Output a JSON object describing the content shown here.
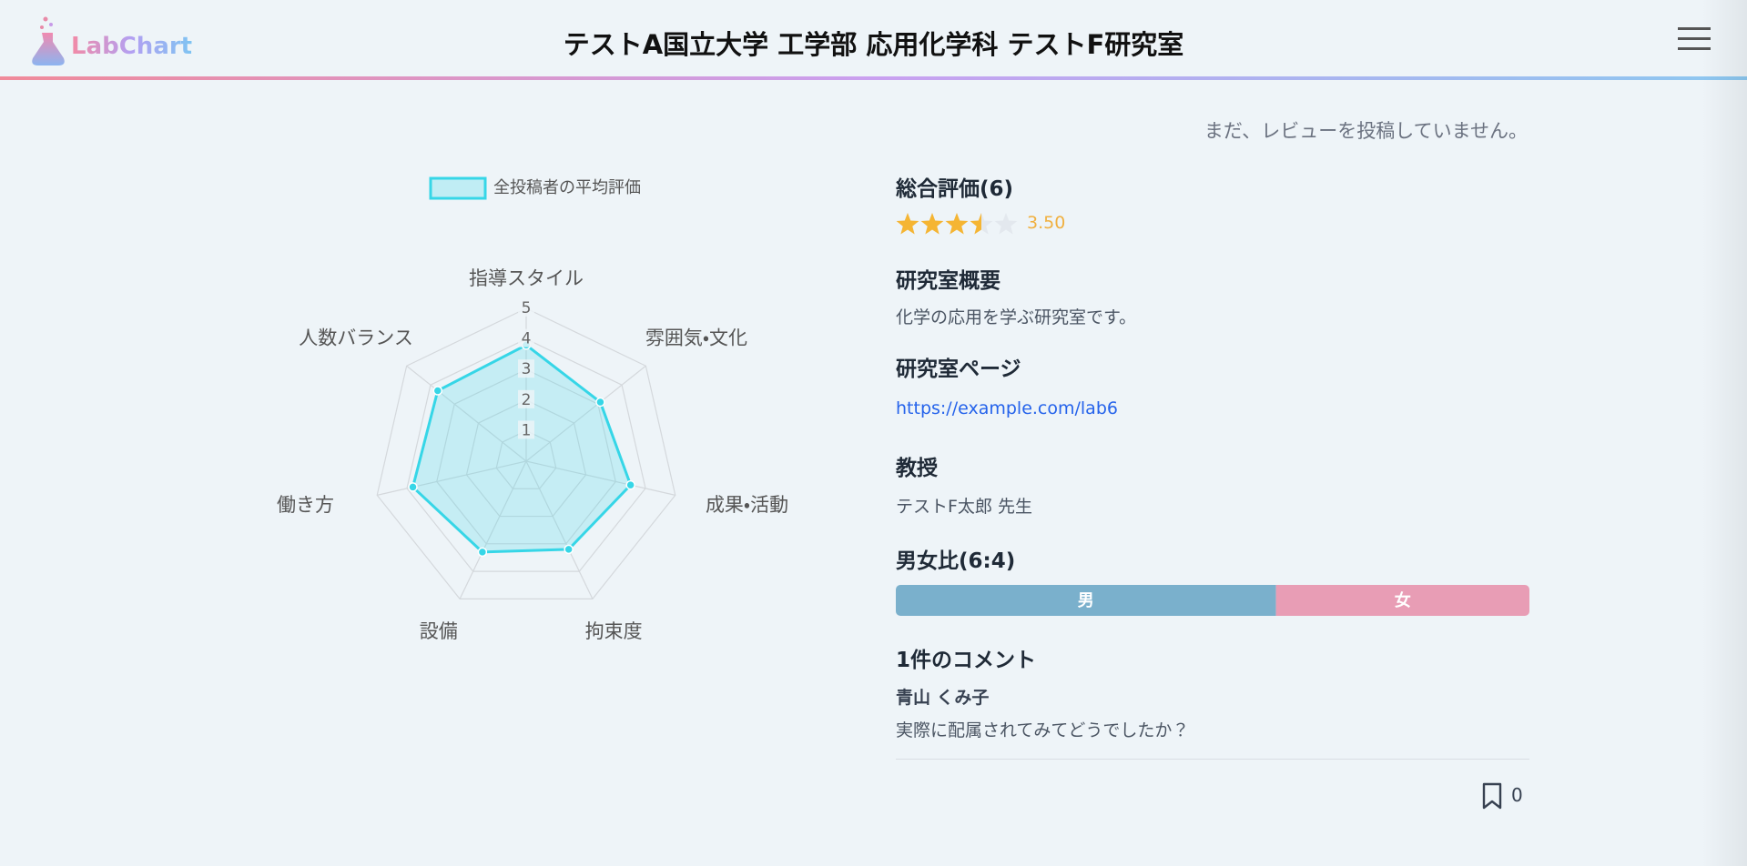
{
  "header": {
    "logo": "LabChart",
    "title": "テストA国立大学 工学部 応用化学科 テストF研究室"
  },
  "notice": "まだ、レビューを投稿していません。",
  "chart_data": {
    "type": "radar",
    "categories": [
      "指導スタイル",
      "雰囲気・文化",
      "成果・活動",
      "拘束度",
      "設備",
      "働き方",
      "人数バランス"
    ],
    "series": [
      {
        "name": "全投稿者の平均評価",
        "color": "#36d6e7",
        "values": [
          3.8,
          3.1,
          3.5,
          3.2,
          3.3,
          3.8,
          3.7
        ]
      }
    ],
    "ylim": [
      0,
      5
    ],
    "yticks": [
      1,
      2,
      3,
      4,
      5
    ],
    "grid": true,
    "legend": "top"
  },
  "details": {
    "rating": {
      "title": "総合評価(6)",
      "value": 3.5,
      "label": "3.50",
      "max": 5
    },
    "overview": {
      "title": "研究室概要",
      "text": "化学の応用を学ぶ研究室です。"
    },
    "page": {
      "title": "研究室ページ",
      "url": "https://example.com/lab6"
    },
    "professor": {
      "title": "教授",
      "name": "テストF太郎 先生"
    },
    "gender": {
      "title": "男女比(6:4)",
      "segments": [
        {
          "name": "男",
          "value": 6,
          "color": "#7ab0cc"
        },
        {
          "name": "女",
          "value": 4,
          "color": "#e89db5"
        }
      ]
    },
    "comments": {
      "title": "1件のコメント",
      "items": [
        {
          "author": "青山 くみ子",
          "text": "実際に配属されてみてどうでしたか？"
        }
      ]
    },
    "bookmarks": 0
  }
}
